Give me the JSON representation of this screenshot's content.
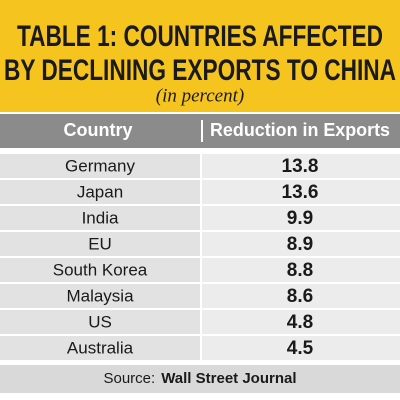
{
  "header": {
    "title_lines": [
      "TABLE 1: COUNTRIES AFFECTED",
      "BY DECLINING EXPORTS TO CHINA"
    ],
    "subtitle": "(in percent)"
  },
  "table": {
    "columns": [
      "Country",
      "Reduction in Exports"
    ],
    "rows": [
      [
        "Germany",
        13.8
      ],
      [
        "Japan",
        13.6
      ],
      [
        "India",
        9.9
      ],
      [
        "EU",
        8.9
      ],
      [
        "South Korea",
        8.8
      ],
      [
        "Malaysia",
        8.6
      ],
      [
        "US",
        4.8
      ],
      [
        "Australia",
        4.5
      ]
    ]
  },
  "footer": {
    "source_label": "Source:",
    "source": "Wall Street Journal"
  }
}
